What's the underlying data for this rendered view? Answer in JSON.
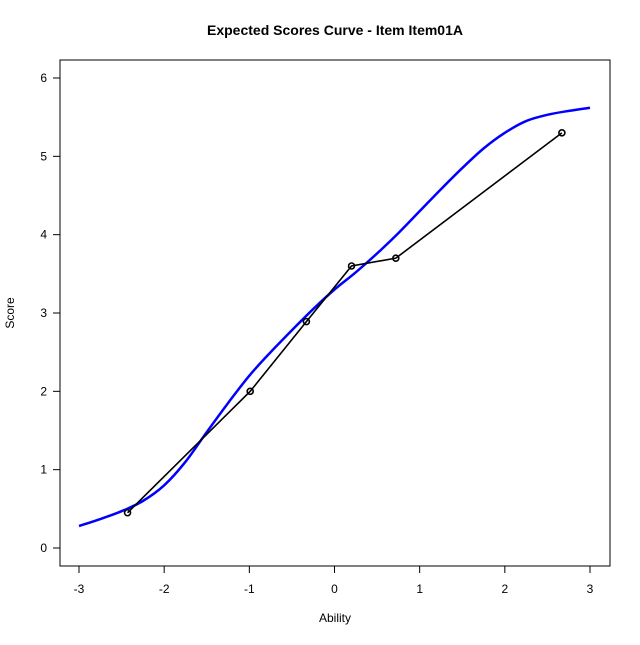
{
  "chart_data": {
    "type": "line",
    "title": "Expected Scores Curve - Item  Item01A",
    "xlabel": "Ability",
    "ylabel": "Score",
    "xlim": [
      -3,
      3
    ],
    "ylim": [
      0,
      6
    ],
    "x_ticks": [
      -3,
      -2,
      -1,
      0,
      1,
      2,
      3
    ],
    "y_ticks": [
      0,
      1,
      2,
      3,
      4,
      5,
      6
    ],
    "grid": false,
    "legend": "none",
    "series": [
      {
        "style": "curve",
        "color": "#0000ff",
        "x": [
          -3.0,
          -2.75,
          -2.5,
          -2.25,
          -2.0,
          -1.75,
          -1.5,
          -1.25,
          -1.0,
          -0.75,
          -0.5,
          -0.25,
          0.0,
          0.25,
          0.5,
          0.75,
          1.0,
          1.25,
          1.5,
          1.75,
          2.0,
          2.25,
          2.5,
          2.75,
          3.0
        ],
        "y": [
          0.28,
          0.37,
          0.47,
          0.6,
          0.8,
          1.1,
          1.48,
          1.85,
          2.2,
          2.5,
          2.78,
          3.05,
          3.3,
          3.52,
          3.76,
          4.02,
          4.3,
          4.58,
          4.85,
          5.1,
          5.3,
          5.45,
          5.53,
          5.58,
          5.62
        ]
      },
      {
        "style": "line-points",
        "color": "#000000",
        "x": [
          -2.43,
          -0.99,
          -0.33,
          0.2,
          0.72,
          2.67
        ],
        "y": [
          0.45,
          2.0,
          2.89,
          3.6,
          3.7,
          5.3
        ]
      }
    ]
  }
}
